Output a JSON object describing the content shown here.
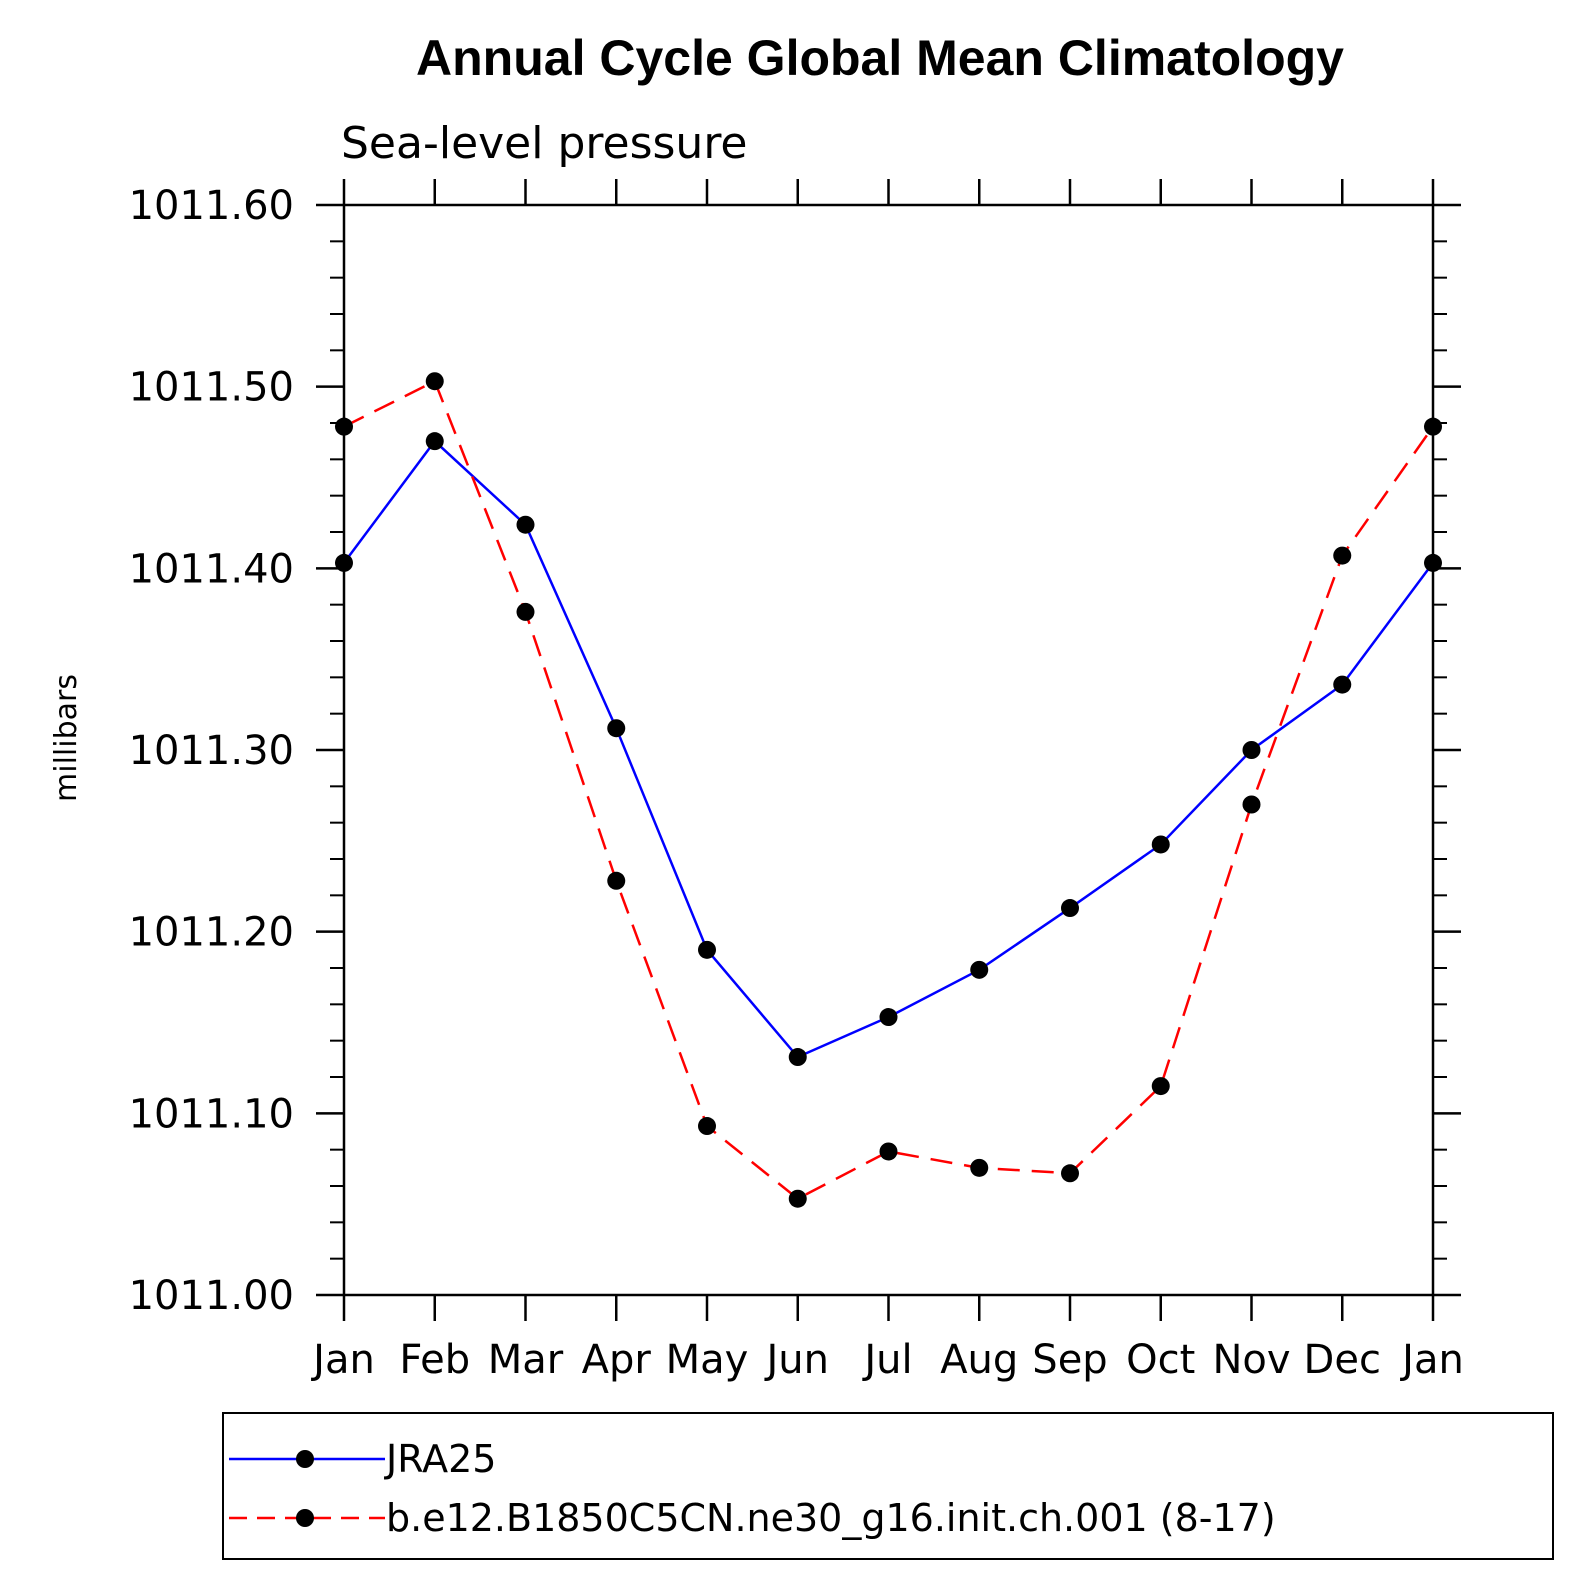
{
  "chart_data": {
    "type": "line",
    "title": "Annual Cycle Global Mean Climatology",
    "subtitle": "Sea-level pressure",
    "xlabel": "",
    "ylabel": "millibars",
    "categories": [
      "Jan",
      "Feb",
      "Mar",
      "Apr",
      "May",
      "Jun",
      "Jul",
      "Aug",
      "Sep",
      "Oct",
      "Nov",
      "Dec",
      "Jan"
    ],
    "ylim": [
      1011.0,
      1011.6
    ],
    "yticks": [
      "1011.00",
      "1011.10",
      "1011.20",
      "1011.30",
      "1011.40",
      "1011.50",
      "1011.60"
    ],
    "grid": false,
    "legend_position": "bottom",
    "series": [
      {
        "name": "JRA25",
        "color": "#0000ff",
        "dash": "solid",
        "values": [
          1011.403,
          1011.47,
          1011.424,
          1011.312,
          1011.19,
          1011.131,
          1011.153,
          1011.179,
          1011.213,
          1011.248,
          1011.3,
          1011.336,
          1011.403
        ]
      },
      {
        "name": "b.e12.B1850C5CN.ne30_g16.init.ch.001 (8-17)",
        "color": "#ff0000",
        "dash": "dashed",
        "values": [
          1011.478,
          1011.503,
          1011.376,
          1011.228,
          1011.093,
          1011.053,
          1011.079,
          1011.07,
          1011.067,
          1011.115,
          1011.27,
          1011.407,
          1011.478
        ]
      }
    ]
  }
}
